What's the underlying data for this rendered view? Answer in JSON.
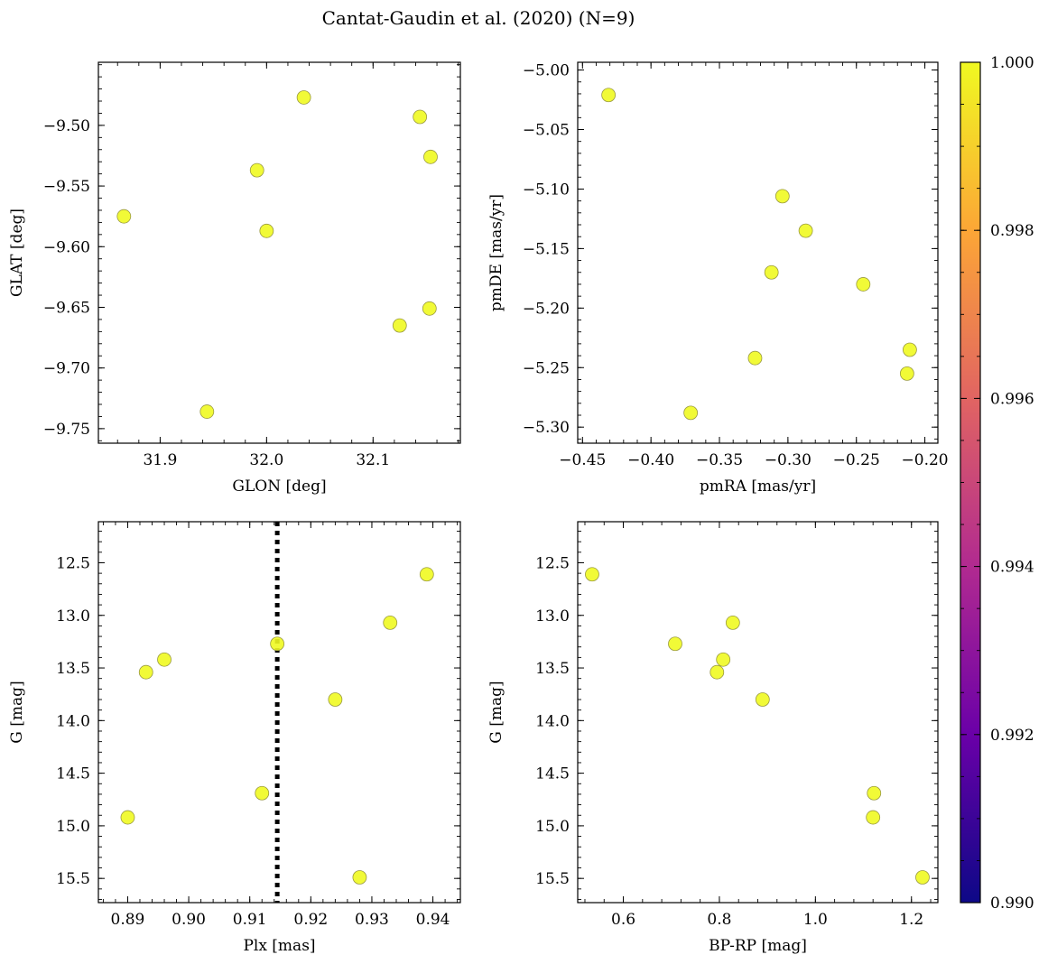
{
  "figure": {
    "title": "Cantat-Gaudin et al. (2020) (N=9)"
  },
  "chart_data": [
    {
      "id": "glon-glat",
      "type": "scatter",
      "xlabel": "GLON [deg]",
      "ylabel": "GLAT [deg]",
      "xlim": [
        31.842,
        32.182
      ],
      "ylim": [
        -9.762,
        -9.448
      ],
      "y_inverted": false,
      "xticks": [
        31.9,
        32.0,
        32.1
      ],
      "xtick_labels": [
        "31.9",
        "32.0",
        "32.1"
      ],
      "yticks": [
        -9.5,
        -9.55,
        -9.6,
        -9.65,
        -9.7,
        -9.75
      ],
      "ytick_labels": [
        "−9.50",
        "−9.55",
        "−9.60",
        "−9.65",
        "−9.70",
        "−9.75"
      ],
      "x": [
        32.035,
        32.144,
        32.154,
        31.991,
        31.866,
        32.0,
        32.153,
        32.125,
        31.944
      ],
      "y": [
        -9.477,
        -9.493,
        -9.526,
        -9.537,
        -9.575,
        -9.587,
        -9.651,
        -9.665,
        -9.736
      ]
    },
    {
      "id": "pmra-pmde",
      "type": "scatter",
      "xlabel": "pmRA [mas/yr]",
      "ylabel": "pmDE [mas/yr]",
      "xlim": [
        -0.4535,
        -0.1905
      ],
      "ylim": [
        -5.3135,
        -4.9935
      ],
      "y_inverted": false,
      "xticks": [
        -0.45,
        -0.4,
        -0.35,
        -0.3,
        -0.25,
        -0.2
      ],
      "xtick_labels": [
        "−0.45",
        "−0.40",
        "−0.35",
        "−0.30",
        "−0.25",
        "−0.20"
      ],
      "yticks": [
        -5.0,
        -5.05,
        -5.1,
        -5.15,
        -5.2,
        -5.25,
        -5.3
      ],
      "ytick_labels": [
        "−5.00",
        "−5.05",
        "−5.10",
        "−5.15",
        "−5.20",
        "−5.25",
        "−5.30"
      ],
      "x": [
        -0.431,
        -0.304,
        -0.287,
        -0.312,
        -0.245,
        -0.211,
        -0.213,
        -0.324,
        -0.371
      ],
      "y": [
        -5.021,
        -5.106,
        -5.135,
        -5.17,
        -5.18,
        -5.235,
        -5.255,
        -5.242,
        -5.288
      ]
    },
    {
      "id": "plx-g",
      "type": "scatter",
      "xlabel": "Plx [mas]",
      "ylabel": "G [mag]",
      "xlim": [
        0.8852,
        0.9445
      ],
      "ylim": [
        15.73,
        12.11
      ],
      "y_inverted": true,
      "xticks": [
        0.89,
        0.9,
        0.91,
        0.92,
        0.93,
        0.94
      ],
      "xtick_labels": [
        "0.89",
        "0.90",
        "0.91",
        "0.92",
        "0.93",
        "0.94"
      ],
      "yticks": [
        12.5,
        13.0,
        13.5,
        14.0,
        14.5,
        15.0,
        15.5
      ],
      "ytick_labels": [
        "12.5",
        "13.0",
        "13.5",
        "14.0",
        "14.5",
        "15.0",
        "15.5"
      ],
      "vline": {
        "x": 0.9145,
        "style": "dotted",
        "color": "#000000"
      },
      "x": [
        0.939,
        0.933,
        0.9145,
        0.896,
        0.893,
        0.924,
        0.912,
        0.89,
        0.928
      ],
      "y": [
        12.61,
        13.07,
        13.27,
        13.42,
        13.54,
        13.8,
        14.69,
        14.92,
        15.49
      ]
    },
    {
      "id": "bprp-g",
      "type": "scatter",
      "xlabel": "BP-RP [mag]",
      "ylabel": "G [mag]",
      "xlim": [
        0.505,
        1.255
      ],
      "ylim": [
        15.73,
        12.11
      ],
      "y_inverted": true,
      "xticks": [
        0.6,
        0.8,
        1.0,
        1.2
      ],
      "xtick_labels": [
        "0.6",
        "0.8",
        "1.0",
        "1.2"
      ],
      "yticks": [
        12.5,
        13.0,
        13.5,
        14.0,
        14.5,
        15.0,
        15.5
      ],
      "ytick_labels": [
        "12.5",
        "13.0",
        "13.5",
        "14.0",
        "14.5",
        "15.0",
        "15.5"
      ],
      "x": [
        0.535,
        0.828,
        0.708,
        0.808,
        0.795,
        0.89,
        1.122,
        1.12,
        1.223
      ],
      "y": [
        12.61,
        13.07,
        13.27,
        13.42,
        13.54,
        13.8,
        14.69,
        14.92,
        15.49
      ]
    }
  ],
  "colorbar": {
    "min": 0.99,
    "max": 1.0,
    "ticks": [
      0.99,
      0.992,
      0.994,
      0.996,
      0.998,
      1.0
    ],
    "tick_labels": [
      "0.990",
      "0.992",
      "0.994",
      "0.996",
      "0.998",
      "1.000"
    ],
    "colormap": "plasma",
    "point_value": 1.0
  },
  "colors": {
    "point_fill": "#f0f921",
    "point_edge": "#9a9a40",
    "plasma": [
      "#0d0887",
      "#6a00a8",
      "#b12a90",
      "#e16462",
      "#fca636",
      "#f0f921"
    ]
  }
}
